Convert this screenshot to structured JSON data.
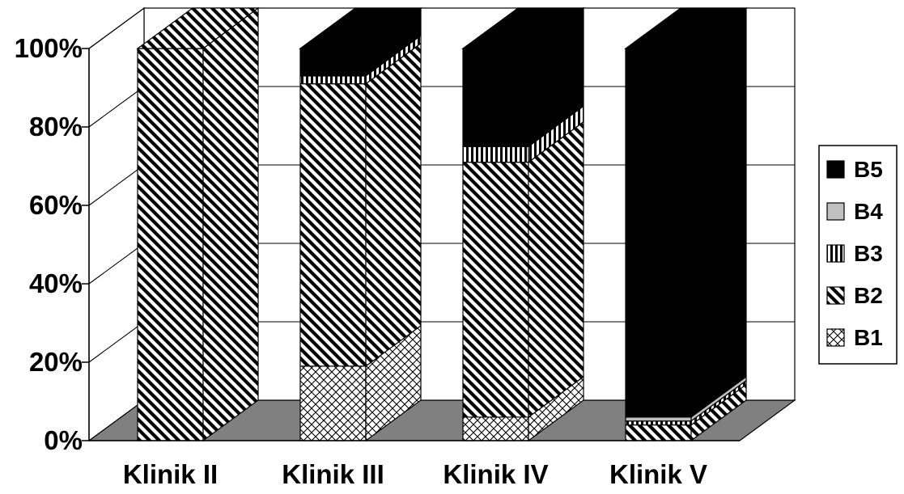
{
  "chart_data": {
    "type": "bar",
    "stacked": "percent",
    "three_d": true,
    "categories": [
      "Klinik II",
      "Klinik III",
      "Klinik IV",
      "Klinik V"
    ],
    "series": [
      {
        "name": "B1",
        "values": [
          0,
          19,
          6,
          0
        ]
      },
      {
        "name": "B2",
        "values": [
          100,
          72,
          65,
          4
        ]
      },
      {
        "name": "B3",
        "values": [
          0,
          2,
          4,
          1
        ]
      },
      {
        "name": "B4",
        "values": [
          0,
          0,
          0,
          1
        ]
      },
      {
        "name": "B5",
        "values": [
          0,
          7,
          25,
          94
        ]
      }
    ],
    "y_ticks": [
      "0%",
      "20%",
      "40%",
      "60%",
      "80%",
      "100%"
    ],
    "ylim": [
      0,
      100
    ],
    "legend_position": "right",
    "grid": true,
    "colors": {
      "B1": "crosshatch",
      "B2": "diagonal-stripes",
      "B3": "vertical-stripes",
      "B4": "#c0c0c0",
      "B5": "#000000",
      "floor": "#808080"
    }
  }
}
